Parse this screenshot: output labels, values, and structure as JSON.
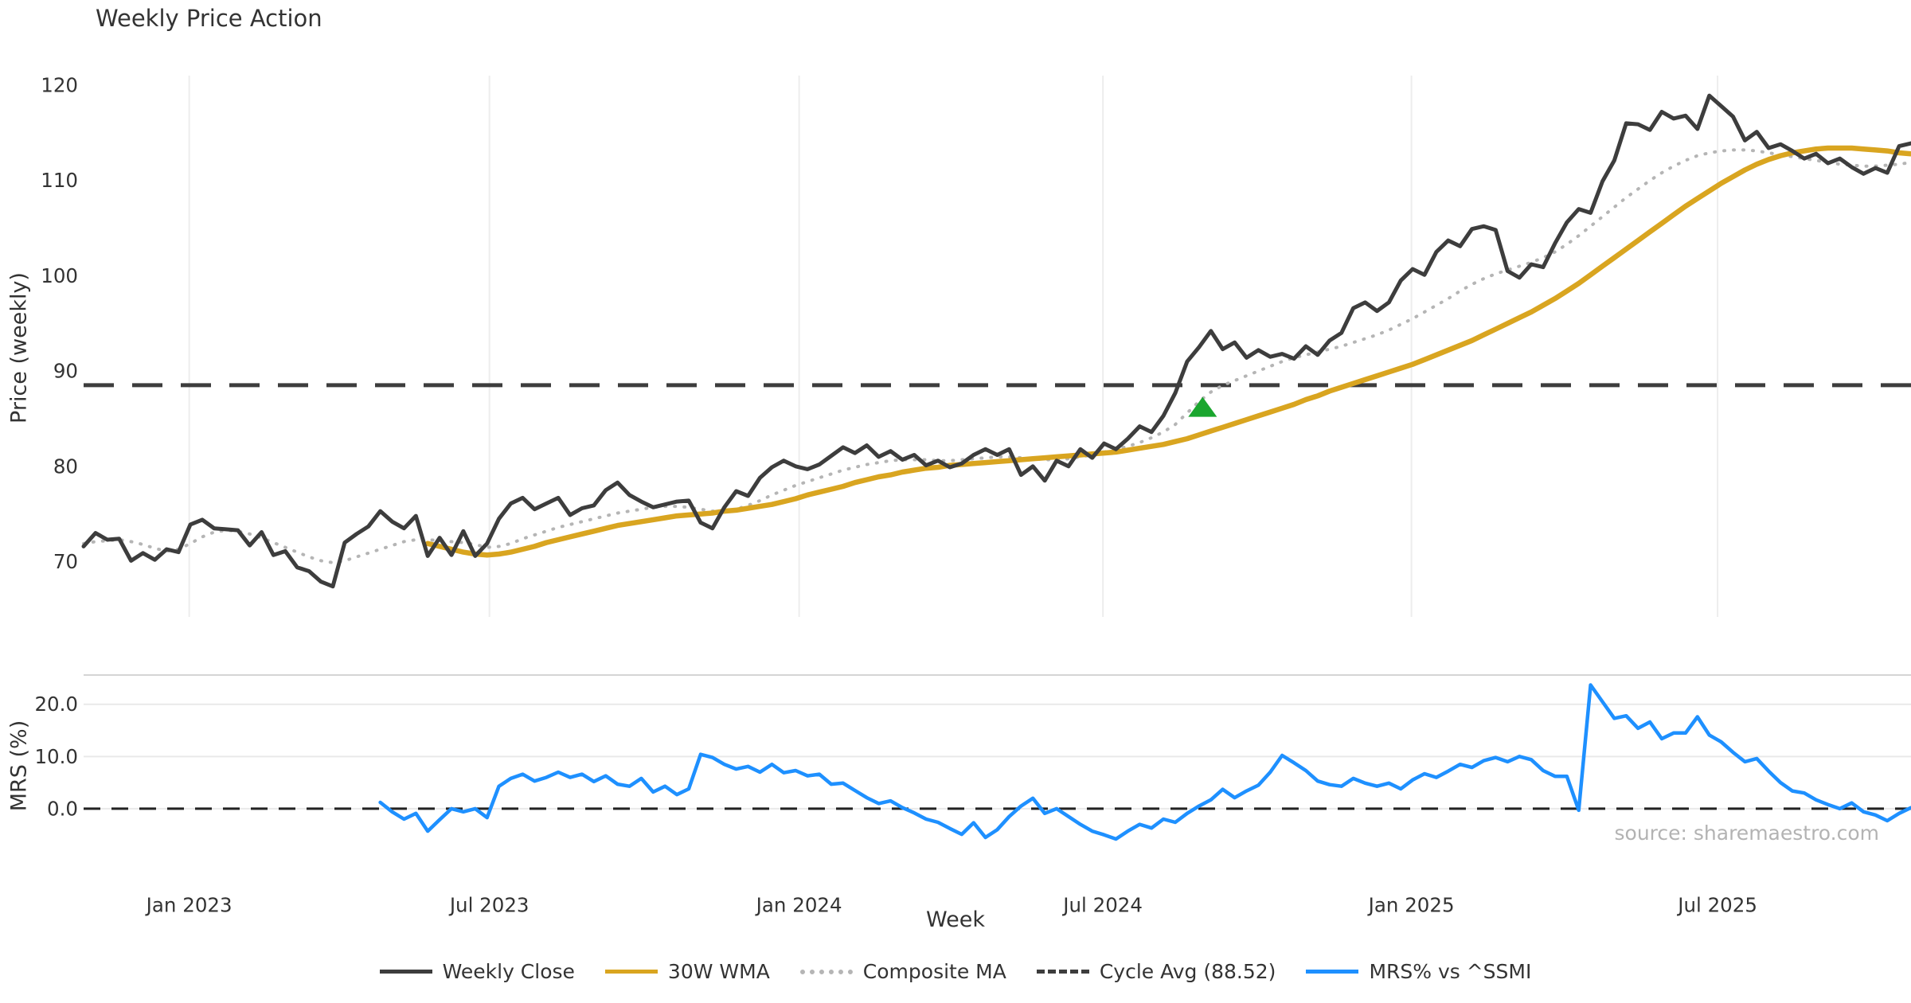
{
  "title": "Weekly Price Action",
  "xlabel": "Week",
  "source_text": "source: sharemaestro.com",
  "colors": {
    "close": "#3d3d3d",
    "wma": "#d9a520",
    "composite": "#b5b5b5",
    "cycle": "#3d3d3d",
    "mrs": "#1e90ff",
    "marker_green": "#1aa62e",
    "grid": "#ededed",
    "grid_h": "#e9e9e9",
    "panel_border": "#d5d5d5",
    "tick_text": "#333333"
  },
  "legend": [
    {
      "label": "Weekly Close",
      "color_key": "close",
      "style": "solid"
    },
    {
      "label": "30W WMA",
      "color_key": "wma",
      "style": "solid"
    },
    {
      "label": "Composite MA",
      "color_key": "composite",
      "style": "dotted"
    },
    {
      "label": "Cycle Avg (88.52)",
      "color_key": "cycle",
      "style": "dashed"
    },
    {
      "label": "MRS% vs ^SSMI",
      "color_key": "mrs",
      "style": "solid"
    }
  ],
  "chart_data": {
    "type": "line",
    "x_start_date": "2022-10-31",
    "x_step_days": 7,
    "num_weeks": 155,
    "x_ticks": [
      {
        "pos": 8.9,
        "label": "Jan 2023"
      },
      {
        "pos": 34.2,
        "label": "Jul 2023"
      },
      {
        "pos": 60.3,
        "label": "Jan 2024"
      },
      {
        "pos": 85.9,
        "label": "Jul 2024"
      },
      {
        "pos": 111.9,
        "label": "Jan 2025"
      },
      {
        "pos": 137.7,
        "label": "Jul 2025"
      }
    ],
    "panels": [
      {
        "name": "price",
        "ylabel": "Price (weekly)",
        "ylim": [
          64.2,
          121.0
        ],
        "yticks": [
          70,
          80,
          90,
          100,
          110,
          120
        ],
        "grid": "vertical",
        "cycle_avg": 88.52,
        "series": [
          {
            "name": "Weekly Close",
            "start_index": 0,
            "values": [
              71.6,
              73.0,
              72.3,
              72.4,
              70.1,
              70.9,
              70.2,
              71.3,
              71.0,
              73.9,
              74.4,
              73.5,
              73.4,
              73.3,
              71.7,
              73.1,
              70.7,
              71.1,
              69.4,
              69.0,
              67.9,
              67.4,
              72.0,
              72.9,
              73.7,
              75.3,
              74.2,
              73.5,
              74.8,
              70.6,
              72.5,
              70.7,
              73.2,
              70.6,
              71.9,
              74.5,
              76.1,
              76.7,
              75.5,
              76.1,
              76.7,
              74.9,
              75.6,
              75.9,
              77.5,
              78.3,
              77.0,
              76.3,
              75.7,
              76.0,
              76.3,
              76.4,
              74.1,
              73.5,
              75.7,
              77.4,
              76.9,
              78.8,
              79.9,
              80.6,
              80.0,
              79.7,
              80.2,
              81.1,
              82.0,
              81.4,
              82.2,
              81.0,
              81.6,
              80.7,
              81.2,
              80.1,
              80.6,
              79.9,
              80.3,
              81.2,
              81.8,
              81.2,
              81.8,
              79.1,
              80.0,
              78.5,
              80.6,
              80.0,
              81.8,
              80.9,
              82.4,
              81.8,
              82.9,
              84.2,
              83.6,
              85.3,
              87.7,
              91.0,
              92.5,
              94.2,
              92.3,
              93.0,
              91.4,
              92.2,
              91.5,
              91.8,
              91.3,
              92.6,
              91.7,
              93.2,
              94.0,
              96.6,
              97.2,
              96.3,
              97.2,
              99.5,
              100.7,
              100.1,
              102.5,
              103.7,
              103.1,
              104.9,
              105.2,
              104.8,
              100.5,
              99.8,
              101.2,
              100.9,
              103.4,
              105.6,
              107.0,
              106.6,
              109.9,
              112.1,
              116.0,
              115.9,
              115.3,
              117.2,
              116.5,
              116.8,
              115.4,
              118.9,
              117.8,
              116.7,
              114.2,
              115.1,
              113.4,
              113.8,
              113.1,
              112.3,
              112.8,
              111.8,
              112.3,
              111.4,
              110.7,
              111.3,
              110.8,
              113.6,
              113.9
            ]
          },
          {
            "name": "30W WMA",
            "start_index": 29,
            "values": [
              71.9,
              71.6,
              71.3,
              71.0,
              70.8,
              70.7,
              70.8,
              71.0,
              71.3,
              71.6,
              72.0,
              72.3,
              72.6,
              72.9,
              73.2,
              73.5,
              73.8,
              74.0,
              74.2,
              74.4,
              74.6,
              74.8,
              74.9,
              75.0,
              75.1,
              75.3,
              75.4,
              75.6,
              75.8,
              76.0,
              76.3,
              76.6,
              77.0,
              77.3,
              77.6,
              77.9,
              78.3,
              78.6,
              78.9,
              79.1,
              79.4,
              79.6,
              79.8,
              79.9,
              80.1,
              80.2,
              80.3,
              80.4,
              80.5,
              80.6,
              80.7,
              80.8,
              80.9,
              81.0,
              81.1,
              81.2,
              81.3,
              81.4,
              81.5,
              81.7,
              81.9,
              82.1,
              82.3,
              82.6,
              82.9,
              83.3,
              83.7,
              84.1,
              84.5,
              84.9,
              85.3,
              85.7,
              86.1,
              86.5,
              87.0,
              87.4,
              87.9,
              88.3,
              88.7,
              89.1,
              89.5,
              89.9,
              90.3,
              90.7,
              91.2,
              91.7,
              92.2,
              92.7,
              93.2,
              93.8,
              94.4,
              95.0,
              95.6,
              96.2,
              96.9,
              97.6,
              98.4,
              99.2,
              100.1,
              101.0,
              101.9,
              102.8,
              103.7,
              104.6,
              105.5,
              106.4,
              107.3,
              108.1,
              108.9,
              109.7,
              110.4,
              111.1,
              111.7,
              112.2,
              112.6,
              112.9,
              113.1,
              113.3,
              113.4,
              113.4,
              113.4,
              113.3,
              113.2,
              113.1,
              112.9,
              112.8
            ]
          },
          {
            "name": "Composite MA",
            "start_index": 0,
            "values": [
              71.9,
              72.1,
              72.2,
              72.3,
              72.1,
              71.8,
              71.4,
              71.1,
              71.3,
              71.9,
              72.6,
              73.1,
              73.3,
              73.2,
              72.9,
              72.5,
              72.0,
              71.5,
              71.0,
              70.5,
              70.1,
              69.9,
              70.1,
              70.5,
              70.9,
              71.3,
              71.7,
              72.1,
              72.3,
              72.3,
              72.2,
              72.1,
              72.0,
              71.8,
              71.5,
              71.6,
              71.9,
              72.4,
              72.8,
              73.2,
              73.6,
              73.9,
              74.2,
              74.5,
              74.8,
              75.1,
              75.3,
              75.5,
              75.7,
              75.8,
              75.8,
              75.7,
              75.5,
              75.3,
              75.3,
              75.5,
              75.9,
              76.4,
              77.0,
              77.5,
              78.0,
              78.4,
              78.8,
              79.2,
              79.6,
              79.9,
              80.2,
              80.4,
              80.6,
              80.7,
              80.7,
              80.7,
              80.6,
              80.6,
              80.7,
              80.8,
              80.9,
              81.0,
              81.0,
              80.9,
              80.8,
              80.7,
              80.7,
              80.8,
              81.0,
              81.2,
              81.5,
              81.8,
              82.1,
              82.5,
              83.0,
              83.6,
              84.4,
              85.6,
              86.8,
              87.8,
              88.5,
              89.0,
              89.5,
              90.0,
              90.5,
              91.0,
              91.4,
              91.7,
              92.0,
              92.3,
              92.6,
              93.0,
              93.4,
              93.8,
              94.3,
              94.9,
              95.5,
              96.2,
              96.9,
              97.6,
              98.4,
              99.1,
              99.7,
              100.2,
              100.6,
              101.0,
              101.4,
              101.9,
              102.5,
              103.3,
              104.2,
              105.2,
              106.2,
              107.2,
              108.2,
              109.1,
              110.0,
              110.8,
              111.5,
              112.1,
              112.6,
              112.9,
              113.1,
              113.2,
              113.2,
              113.1,
              112.9,
              112.7,
              112.5,
              112.3,
              112.1,
              111.9,
              111.7,
              111.6,
              111.5,
              111.5,
              111.6,
              111.7,
              111.9
            ]
          }
        ],
        "annotations": [
          {
            "type": "triangle-up",
            "week_index": 94.3,
            "value": 86.2,
            "color_key": "marker_green"
          }
        ]
      },
      {
        "name": "mrs",
        "ylabel": "MRS (%)",
        "ylim": [
          -11.6,
          25.6
        ],
        "yticks": [
          0.0,
          10.0,
          20.0
        ],
        "ytick_labels": [
          "0.0",
          "10.0",
          "20.0"
        ],
        "grid": "horizontal",
        "zero_line": 0.0,
        "series": [
          {
            "name": "MRS% vs ^SSMI",
            "start_index": 25,
            "values": [
              1.2,
              -0.6,
              -2.0,
              -0.9,
              -4.3,
              -2.1,
              0.0,
              -0.6,
              0.0,
              -1.7,
              4.3,
              5.8,
              6.6,
              5.3,
              6.0,
              7.0,
              6.0,
              6.6,
              5.2,
              6.3,
              4.7,
              4.3,
              5.8,
              3.2,
              4.3,
              2.7,
              3.8,
              10.4,
              9.8,
              8.5,
              7.6,
              8.1,
              7.0,
              8.5,
              6.9,
              7.3,
              6.3,
              6.6,
              4.7,
              4.9,
              3.5,
              2.1,
              1.0,
              1.5,
              0.2,
              -0.8,
              -2.0,
              -2.6,
              -3.8,
              -4.9,
              -2.7,
              -5.5,
              -4.0,
              -1.5,
              0.5,
              2.0,
              -0.9,
              0.0,
              -1.5,
              -3.0,
              -4.3,
              -5.0,
              -5.8,
              -4.3,
              -3.0,
              -3.7,
              -2.0,
              -2.6,
              -0.9,
              0.5,
              1.7,
              3.7,
              2.1,
              3.4,
              4.5,
              7.0,
              10.2,
              8.8,
              7.3,
              5.3,
              4.6,
              4.3,
              5.8,
              4.9,
              4.3,
              4.9,
              3.8,
              5.5,
              6.7,
              6.0,
              7.2,
              8.5,
              7.9,
              9.2,
              9.8,
              9.0,
              10.0,
              9.4,
              7.3,
              6.2,
              6.2,
              -0.3,
              23.7,
              20.5,
              17.3,
              17.8,
              15.4,
              16.6,
              13.4,
              14.5,
              14.5,
              17.6,
              14.1,
              12.8,
              10.8,
              9.0,
              9.6,
              7.2,
              5.0,
              3.4,
              3.0,
              1.7,
              0.8,
              0.0,
              1.1,
              -0.6,
              -1.2,
              -2.3,
              -0.9,
              0.2
            ]
          }
        ]
      }
    ]
  }
}
